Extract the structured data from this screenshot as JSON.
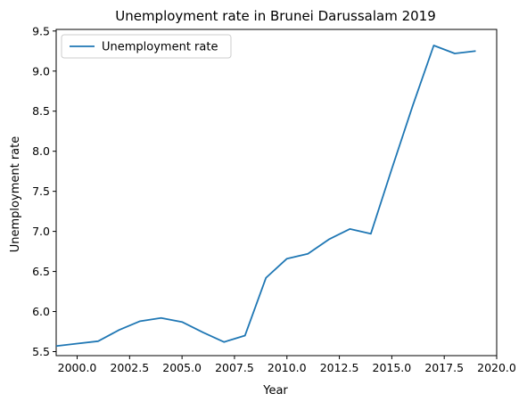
{
  "chart_data": {
    "type": "line",
    "title": "Unemployment rate in Brunei Darussalam 2019",
    "xlabel": "Year",
    "ylabel": "Unemployment rate",
    "xlim": [
      1999,
      2020
    ],
    "ylim": [
      5.5,
      9.5
    ],
    "xticks": [
      2000.0,
      2002.5,
      2005.0,
      2007.5,
      2010.0,
      2012.5,
      2015.0,
      2017.5,
      2020.0
    ],
    "xtick_labels": [
      "2000.0",
      "2002.5",
      "2005.0",
      "2007.5",
      "2010.0",
      "2012.5",
      "2015.0",
      "2017.5",
      "2020.0"
    ],
    "yticks": [
      5.5,
      6.0,
      6.5,
      7.0,
      7.5,
      8.0,
      8.5,
      9.0,
      9.5
    ],
    "ytick_labels": [
      "5.5",
      "6.0",
      "6.5",
      "7.0",
      "7.5",
      "8.0",
      "8.5",
      "9.0",
      "9.5"
    ],
    "grid": false,
    "legend_position": "top-left",
    "series": [
      {
        "name": "Unemployment rate",
        "color": "#1f77b4",
        "x": [
          1999,
          2000,
          2001,
          2002,
          2003,
          2004,
          2005,
          2006,
          2007,
          2008,
          2009,
          2010,
          2011,
          2012,
          2013,
          2014,
          2015,
          2016,
          2017,
          2018,
          2019
        ],
        "y": [
          5.57,
          5.6,
          5.63,
          5.77,
          5.88,
          5.92,
          5.87,
          5.74,
          5.62,
          5.7,
          6.42,
          6.66,
          6.72,
          6.9,
          7.03,
          6.97,
          7.78,
          8.57,
          9.32,
          9.22,
          9.25
        ]
      }
    ]
  }
}
